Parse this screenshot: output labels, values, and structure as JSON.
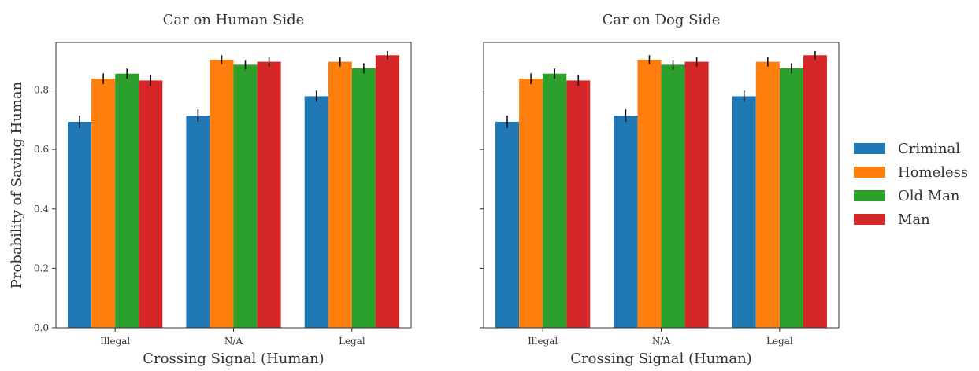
{
  "legend": {
    "placement": "right",
    "entries": [
      "Criminal",
      "Homeless",
      "Old Man",
      "Man"
    ],
    "colors": [
      "#1f77b4",
      "#ff7f0e",
      "#2ca02c",
      "#d62728"
    ]
  },
  "chart_data": [
    {
      "type": "bar",
      "title": "Car on Human Side",
      "xlabel": "Crossing Signal (Human)",
      "ylabel": "Probability of Saving Human",
      "categories": [
        "Illegal",
        "N/A",
        "Legal"
      ],
      "ylim": [
        0,
        0.96
      ],
      "yticks": [
        "0.0",
        "0.2",
        "0.4",
        "0.6",
        "0.8"
      ],
      "grid": false,
      "error_bars": true,
      "series": [
        {
          "name": "Criminal",
          "values": [
            0.693,
            0.714,
            0.779
          ],
          "error": [
            0.021,
            0.021,
            0.019
          ]
        },
        {
          "name": "Homeless",
          "values": [
            0.838,
            0.902,
            0.895
          ],
          "error": [
            0.018,
            0.015,
            0.016
          ]
        },
        {
          "name": "Old Man",
          "values": [
            0.855,
            0.885,
            0.873
          ],
          "error": [
            0.017,
            0.016,
            0.017
          ]
        },
        {
          "name": "Man",
          "values": [
            0.832,
            0.895,
            0.917
          ],
          "error": [
            0.018,
            0.016,
            0.014
          ]
        }
      ]
    },
    {
      "type": "bar",
      "title": "Car on Dog Side",
      "xlabel": "Crossing Signal (Human)",
      "ylabel": "",
      "categories": [
        "Illegal",
        "N/A",
        "Legal"
      ],
      "ylim": [
        0,
        0.96
      ],
      "yticks": [],
      "grid": false,
      "error_bars": true,
      "series": [
        {
          "name": "Criminal",
          "values": [
            0.693,
            0.714,
            0.779
          ],
          "error": [
            0.021,
            0.021,
            0.019
          ]
        },
        {
          "name": "Homeless",
          "values": [
            0.838,
            0.902,
            0.895
          ],
          "error": [
            0.018,
            0.015,
            0.016
          ]
        },
        {
          "name": "Old Man",
          "values": [
            0.855,
            0.885,
            0.873
          ],
          "error": [
            0.017,
            0.016,
            0.017
          ]
        },
        {
          "name": "Man",
          "values": [
            0.832,
            0.895,
            0.917
          ],
          "error": [
            0.018,
            0.016,
            0.014
          ]
        }
      ]
    }
  ]
}
